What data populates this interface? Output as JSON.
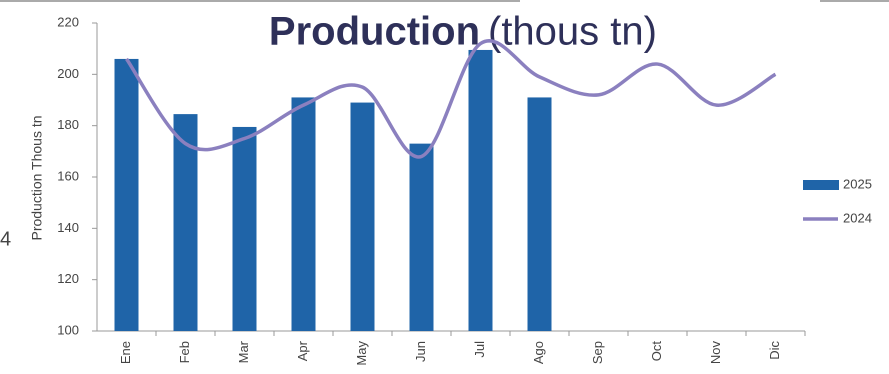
{
  "chart_data": {
    "type": "bar",
    "title": "Production",
    "title_unit": "(thous tn)",
    "y_label": "Production  Thous tn",
    "edge_text": "4",
    "categories": [
      "Ene",
      "Feb",
      "Mar",
      "Apr",
      "May",
      "Jun",
      "Jul",
      "Ago",
      "Sep",
      "Oct",
      "Nov",
      "Dic"
    ],
    "series": [
      {
        "name": "2025",
        "type": "bar",
        "color": "#1f64a8",
        "values": [
          206,
          184.5,
          179.5,
          191,
          189,
          173,
          209.5,
          191,
          null,
          null,
          null,
          null
        ]
      },
      {
        "name": "2024",
        "type": "line",
        "color": "#8b80bf",
        "values": [
          206,
          173,
          175,
          188,
          195,
          168,
          212,
          199,
          192,
          204,
          188,
          200
        ]
      }
    ],
    "ylim": [
      100,
      220
    ],
    "yticks": [
      100,
      120,
      140,
      160,
      180,
      200,
      220
    ],
    "grid": false,
    "legend": "right"
  }
}
